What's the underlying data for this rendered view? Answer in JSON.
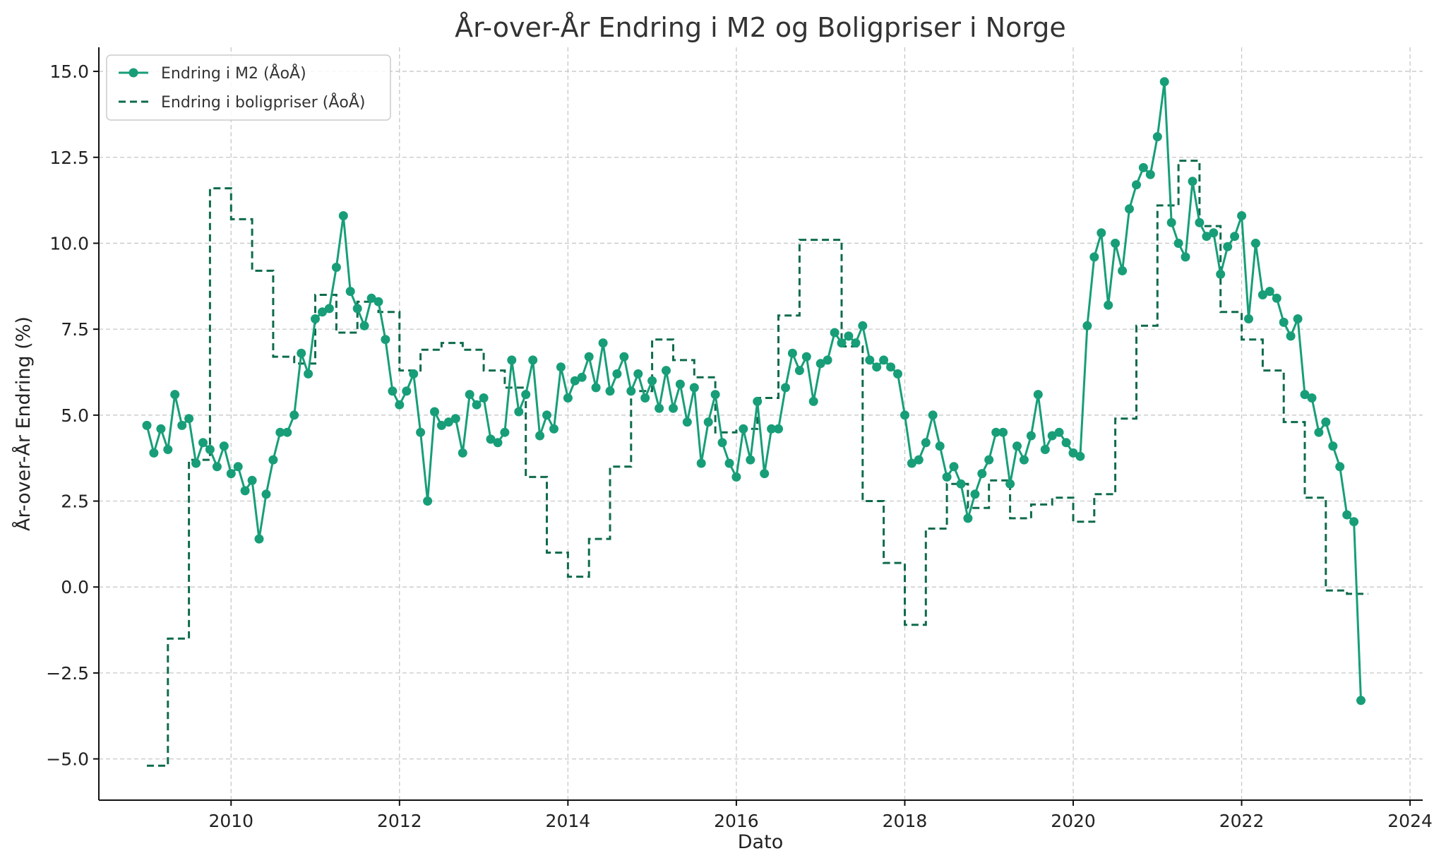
{
  "colors": {
    "m2": "#179e78",
    "housing": "#0e6b4c",
    "grid": "#c8c8c8",
    "axis": "#111111"
  },
  "chart_data": {
    "type": "line",
    "title": "År-over-År Endring i M2 og Boligpriser i Norge",
    "xlabel": "Dato",
    "ylabel": "År-over-År Endring (%)",
    "xlim": [
      2008.43,
      2024.15
    ],
    "ylim": [
      -6.2,
      15.7
    ],
    "x_ticks": [
      2010,
      2012,
      2014,
      2016,
      2018,
      2020,
      2022,
      2024
    ],
    "y_ticks": [
      -5.0,
      -2.5,
      0.0,
      2.5,
      5.0,
      7.5,
      10.0,
      12.5,
      15.0
    ],
    "grid": true,
    "legend": "top-left",
    "series": [
      {
        "name": "Endring i M2 (ÅoÅ)",
        "style": "solid-marker",
        "x_start": 2009.0,
        "x_step_months": 1,
        "values": [
          4.7,
          3.9,
          4.6,
          4.0,
          5.6,
          4.7,
          4.9,
          3.6,
          4.2,
          4.0,
          3.5,
          4.1,
          3.3,
          3.5,
          2.8,
          3.1,
          1.4,
          2.7,
          3.7,
          4.5,
          4.5,
          5.0,
          6.8,
          6.2,
          7.8,
          8.0,
          8.1,
          9.3,
          10.8,
          8.6,
          8.1,
          7.6,
          8.4,
          8.3,
          7.2,
          5.7,
          5.3,
          5.7,
          6.2,
          4.5,
          2.5,
          5.1,
          4.7,
          4.8,
          4.9,
          3.9,
          5.6,
          5.3,
          5.5,
          4.3,
          4.2,
          4.5,
          6.6,
          5.1,
          5.6,
          6.6,
          4.4,
          5.0,
          4.6,
          6.4,
          5.5,
          6.0,
          6.1,
          6.7,
          5.8,
          7.1,
          5.7,
          6.2,
          6.7,
          5.7,
          6.2,
          5.5,
          6.0,
          5.2,
          6.3,
          5.2,
          5.9,
          4.8,
          5.8,
          3.6,
          4.8,
          5.6,
          4.2,
          3.6,
          3.2,
          4.6,
          3.7,
          5.4,
          3.3,
          4.6,
          4.6,
          5.8,
          6.8,
          6.3,
          6.7,
          5.4,
          6.5,
          6.6,
          7.4,
          7.1,
          7.3,
          7.1,
          7.6,
          6.6,
          6.4,
          6.6,
          6.4,
          6.2,
          5.0,
          3.6,
          3.7,
          4.2,
          5.0,
          4.1,
          3.2,
          3.5,
          3.0,
          2.0,
          2.7,
          3.3,
          3.7,
          4.5,
          4.5,
          3.0,
          4.1,
          3.7,
          4.4,
          5.6,
          4.0,
          4.4,
          4.5,
          4.2,
          3.9,
          3.8,
          7.6,
          9.6,
          10.3,
          8.2,
          10.0,
          9.2,
          11.0,
          11.7,
          12.2,
          12.0,
          13.1,
          14.7,
          10.6,
          10.0,
          9.6,
          11.8,
          10.6,
          10.2,
          10.3,
          9.1,
          9.9,
          10.2,
          10.8,
          7.8,
          10.0,
          8.5,
          8.6,
          8.4,
          7.7,
          7.3,
          7.8,
          5.6,
          5.5,
          4.5,
          4.8,
          4.1,
          3.5,
          2.1,
          1.9,
          -3.3
        ]
      },
      {
        "name": "Endring i boligpriser (ÅoÅ)",
        "style": "dashed-step",
        "x_start": 2009.0,
        "x_step_months": 3,
        "values": [
          -5.2,
          -1.5,
          3.7,
          11.6,
          10.7,
          9.2,
          6.7,
          6.5,
          8.5,
          7.4,
          8.3,
          8.0,
          6.3,
          6.9,
          7.1,
          6.9,
          6.3,
          5.8,
          3.2,
          1.0,
          0.3,
          1.4,
          3.5,
          5.7,
          7.2,
          6.6,
          6.1,
          4.5,
          4.6,
          5.5,
          7.9,
          10.1,
          10.1,
          7.0,
          2.5,
          0.7,
          -1.1,
          1.7,
          3.0,
          2.3,
          3.1,
          2.0,
          2.4,
          2.6,
          1.9,
          2.7,
          4.9,
          7.6,
          11.1,
          12.4,
          10.5,
          8.0,
          7.2,
          6.3,
          4.8,
          2.6,
          -0.1,
          -0.2
        ]
      }
    ]
  }
}
